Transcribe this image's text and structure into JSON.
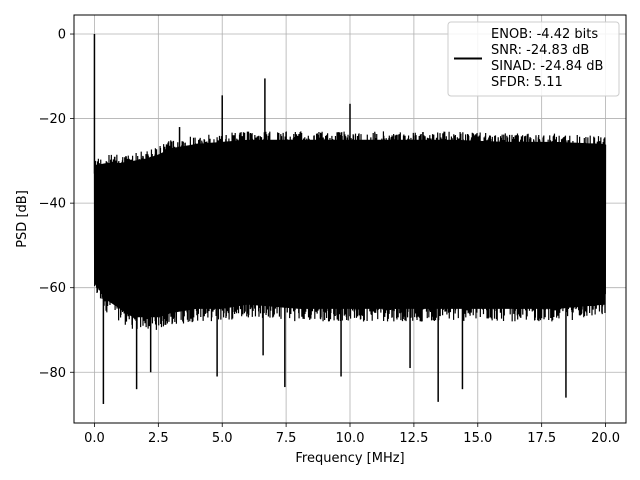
{
  "chart_data": {
    "type": "line",
    "title": "",
    "xlabel": "Frequency [MHz]",
    "ylabel": "PSD [dB]",
    "xlim": [
      -0.8,
      20.8
    ],
    "ylim": [
      -92,
      4.5
    ],
    "xticks": [
      0.0,
      2.5,
      5.0,
      7.5,
      10.0,
      12.5,
      15.0,
      17.5,
      20.0
    ],
    "xtick_labels": [
      "0.0",
      "2.5",
      "5.0",
      "7.5",
      "10.0",
      "12.5",
      "15.0",
      "17.5",
      "20.0"
    ],
    "yticks": [
      0,
      -20,
      -40,
      -60,
      -80
    ],
    "ytick_labels": [
      "0",
      "−20",
      "−40",
      "−60",
      "−80"
    ],
    "grid": true,
    "legend_position": "top-right",
    "legend_entries": [
      "ENOB: -4.42 bits",
      "SNR: -24.83 dB",
      "SINAD: -24.84 dB",
      "SFDR: 5.11"
    ],
    "series": [
      {
        "color": "#000000",
        "envelope": {
          "x": [
            0,
            0.5,
            1,
            1.5,
            2,
            2.5,
            3,
            4,
            5,
            6,
            8,
            10,
            12,
            14,
            16,
            18,
            20
          ],
          "upper": [
            -29,
            -28.5,
            -28.5,
            -28,
            -27.5,
            -26.5,
            -25,
            -24,
            -23.5,
            -23,
            -23,
            -23,
            -23,
            -23,
            -23.5,
            -23.5,
            -24
          ],
          "lower": [
            -62,
            -66,
            -68,
            -70,
            -70,
            -70,
            -69,
            -68,
            -68,
            -67,
            -68,
            -68,
            -68,
            -68,
            -68,
            -68,
            -67
          ]
        },
        "peaks": [
          {
            "x": 0.0,
            "y": 0.0
          },
          {
            "x": 5.0,
            "y": -14.5
          },
          {
            "x": 6.67,
            "y": -10.5
          },
          {
            "x": 10.0,
            "y": -16.5
          },
          {
            "x": 3.33,
            "y": -22.0
          }
        ],
        "dips": [
          {
            "x": 0.35,
            "y": -87.5
          },
          {
            "x": 1.65,
            "y": -84.0
          },
          {
            "x": 2.2,
            "y": -80.0
          },
          {
            "x": 4.8,
            "y": -81.0
          },
          {
            "x": 6.6,
            "y": -76.0
          },
          {
            "x": 7.45,
            "y": -83.5
          },
          {
            "x": 9.65,
            "y": -81.0
          },
          {
            "x": 12.35,
            "y": -79.0
          },
          {
            "x": 13.45,
            "y": -87.0
          },
          {
            "x": 14.4,
            "y": -84.0
          },
          {
            "x": 18.45,
            "y": -86.0
          }
        ]
      }
    ]
  }
}
